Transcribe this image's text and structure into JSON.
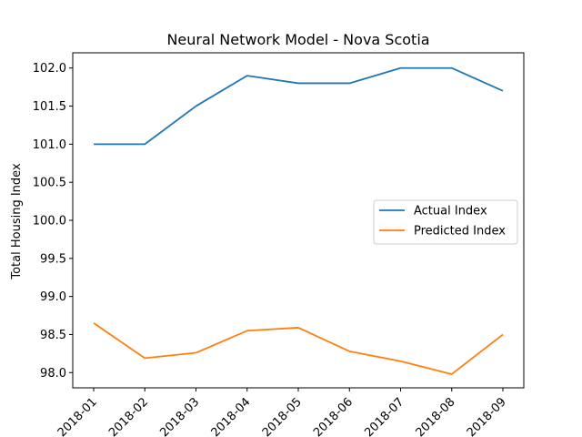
{
  "chart_data": {
    "type": "line",
    "title": "Neural Network Model - Nova Scotia",
    "xlabel": "",
    "ylabel": "Total Housing Index",
    "x": [
      "2018-01",
      "2018-02",
      "2018-03",
      "2018-04",
      "2018-05",
      "2018-06",
      "2018-07",
      "2018-08",
      "2018-09"
    ],
    "yticks": [
      "98.0",
      "98.5",
      "99.0",
      "99.5",
      "100.0",
      "100.5",
      "101.0",
      "101.5",
      "102.0"
    ],
    "ylim": [
      97.8,
      102.2
    ],
    "grid": false,
    "legend_position": "center-right",
    "series": [
      {
        "name": "Actual Index",
        "color": "#1f77b4",
        "values": [
          101.0,
          101.0,
          101.5,
          101.9,
          101.8,
          101.8,
          102.0,
          102.0,
          101.7
        ]
      },
      {
        "name": "Predicted Index",
        "color": "#ff7f0e",
        "values": [
          98.65,
          98.19,
          98.26,
          98.55,
          98.59,
          98.28,
          98.15,
          97.98,
          98.5
        ]
      }
    ]
  }
}
